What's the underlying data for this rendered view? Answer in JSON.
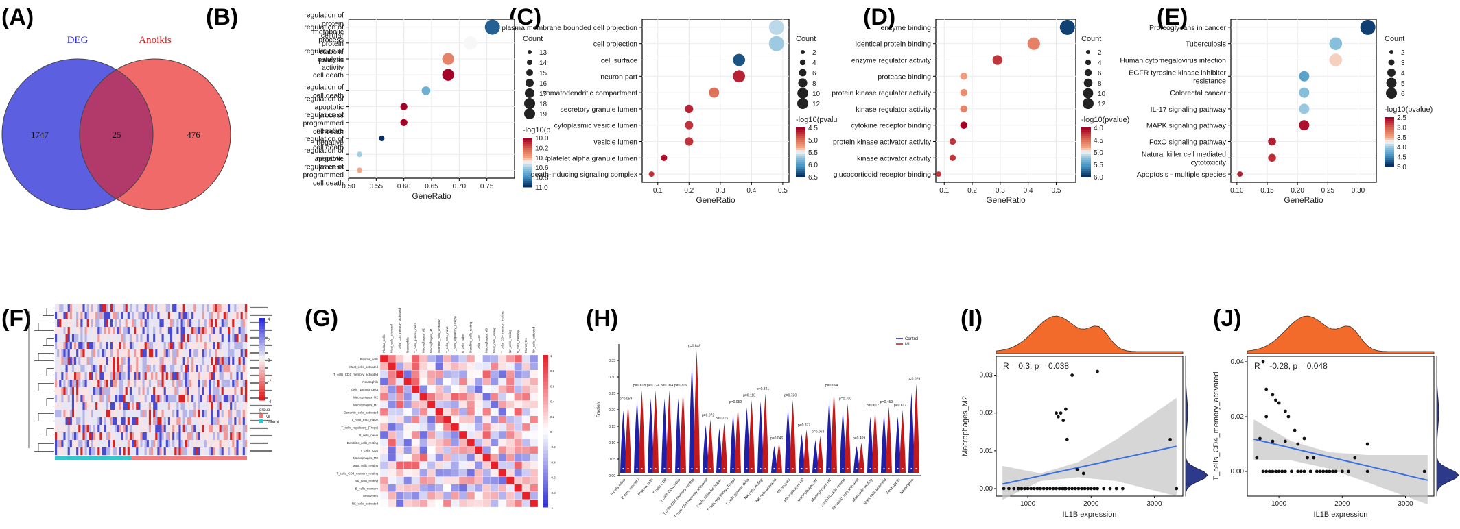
{
  "panel_letters": [
    "(A)",
    "(B)",
    "(C)",
    "(D)",
    "(E)",
    "(F)",
    "(G)",
    "(H)",
    "(I)",
    "(J)"
  ],
  "colors": {
    "deg_circle": "#5b5fe0",
    "anoikis_circle": "#f06a6a",
    "overlap": "#b23a6a",
    "scale_high": "#a50026",
    "scale_mid": "#f7f7f7",
    "scale_low": "#053061",
    "control": "#1f1fa8",
    "mi": "#c21a1a",
    "marginal_top": "#f26b2a",
    "marginal_right": "#2d3a8c",
    "fit_line": "#3a6fe0",
    "ci_band": "#c8c8c8"
  },
  "chart_data": [
    {
      "panel": "A",
      "type": "venn",
      "sets": [
        {
          "name": "DEG",
          "only": 1747
        },
        {
          "name": "Anoikis",
          "only": 476
        }
      ],
      "intersection": 25
    },
    {
      "panel": "B",
      "type": "scatter",
      "xlabel": "GeneRatio",
      "xlim": [
        0.5,
        0.8
      ],
      "xticks": [
        "0.50",
        "0.55",
        "0.60",
        "0.65",
        "0.70",
        "0.75"
      ],
      "categories": [
        "regulation of protein metabolic process",
        "regulation of cellular protein metabolic process",
        "regulation of catalytic activity",
        "cell death",
        "regulation of cell death",
        "regulation of apoptotic process",
        "regulation of programmed cell death",
        "negative regulation of cell death",
        "negative regulation of apoptotic process",
        "negative regulation of programmed cell death"
      ],
      "x": [
        0.76,
        0.72,
        0.68,
        0.68,
        0.64,
        0.6,
        0.6,
        0.56,
        0.52,
        0.52
      ],
      "count": [
        19,
        18,
        17,
        17,
        15,
        14,
        14,
        13,
        13,
        13
      ],
      "color_value": [
        10.9,
        10.5,
        10.3,
        10.0,
        10.7,
        10.0,
        10.0,
        11.0,
        10.6,
        10.4
      ],
      "size_legend_title": "Count",
      "size_legend": [
        "13",
        "14",
        "15",
        "16",
        "17",
        "18",
        "19"
      ],
      "color_legend_title": "-log10(p",
      "color_legend": [
        "10.0",
        "10.2",
        "10.4",
        "10.6",
        "10.8",
        "11.0"
      ],
      "color_range": [
        10.0,
        11.0
      ]
    },
    {
      "panel": "C",
      "type": "scatter",
      "xlabel": "GeneRatio",
      "xlim": [
        0.05,
        0.52
      ],
      "xticks": [
        "0.1",
        "0.2",
        "0.3",
        "0.4",
        "0.5"
      ],
      "categories": [
        "plasma membrane bounded cell projection",
        "cell projection",
        "cell surface",
        "neuron part",
        "somatodendritic compartment",
        "secretory granule lumen",
        "cytoplasmic vesicle lumen",
        "vesicle lumen",
        "platelet alpha granule lumen",
        "death-inducing signaling complex"
      ],
      "x": [
        0.48,
        0.48,
        0.36,
        0.36,
        0.28,
        0.2,
        0.2,
        0.2,
        0.12,
        0.08
      ],
      "count": [
        12,
        12,
        9,
        9,
        7,
        5,
        5,
        5,
        3,
        2
      ],
      "color_value": [
        5.6,
        5.7,
        6.6,
        4.2,
        4.7,
        4.2,
        4.3,
        4.3,
        4.1,
        4.3
      ],
      "size_legend_title": "Count",
      "size_legend": [
        "2",
        "4",
        "6",
        "8",
        "10",
        "12"
      ],
      "color_legend_title": "-log10(pvalu",
      "color_legend": [
        "4.5",
        "5.0",
        "5.5",
        "6.0",
        "6.5"
      ],
      "color_range": [
        4.0,
        6.8
      ]
    },
    {
      "panel": "D",
      "type": "scatter",
      "xlabel": "GeneRatio",
      "xlim": [
        0.07,
        0.57
      ],
      "xticks": [
        "0.1",
        "0.2",
        "0.3",
        "0.4",
        "0.5"
      ],
      "categories": [
        "enzyme binding",
        "identical protein binding",
        "enzyme regulator activity",
        "protease binding",
        "protein kinase regulator activity",
        "kinase regulator activity",
        "cytokine receptor binding",
        "protein kinase activator activity",
        "kinase activator activity",
        "glucocorticoid receptor binding"
      ],
      "x": [
        0.54,
        0.42,
        0.29,
        0.17,
        0.17,
        0.17,
        0.17,
        0.13,
        0.13,
        0.08
      ],
      "count": [
        13,
        10,
        7,
        4,
        4,
        4,
        4,
        3,
        3,
        2
      ],
      "color_value": [
        6.2,
        4.4,
        3.9,
        4.6,
        4.5,
        4.4,
        3.6,
        3.9,
        3.9,
        3.9
      ],
      "size_legend_title": "Count",
      "size_legend": [
        "2",
        "4",
        "6",
        "8",
        "10",
        "12"
      ],
      "color_legend_title": "-log10(pvalue)",
      "color_legend": [
        "4.0",
        "4.5",
        "5.0",
        "5.5",
        "6.0"
      ],
      "color_range": [
        3.6,
        6.3
      ]
    },
    {
      "panel": "E",
      "type": "scatter",
      "xlabel": "GeneRatio",
      "xlim": [
        0.09,
        0.33
      ],
      "xticks": [
        "0.10",
        "0.15",
        "0.20",
        "0.25",
        "0.30"
      ],
      "categories": [
        "Proteoglycans in cancer",
        "Tuberculosis",
        "Human cytomegalovirus infection",
        "EGFR tyrosine kinase inhibitor resistance",
        "Colorectal cancer",
        "IL-17 signaling pathway",
        "MAPK signaling pathway",
        "FoxO signaling pathway",
        "Natural killer cell mediated cytotoxicity",
        "Apoptosis - multiple species"
      ],
      "x": [
        0.316,
        0.263,
        0.263,
        0.211,
        0.211,
        0.211,
        0.211,
        0.158,
        0.158,
        0.105
      ],
      "count": [
        6,
        5,
        5,
        4,
        4,
        4,
        4,
        3,
        3,
        2
      ],
      "color_value": [
        5.2,
        4.2,
        3.6,
        4.5,
        4.2,
        4.1,
        2.3,
        2.4,
        2.5,
        2.4
      ],
      "size_legend_title": "Count",
      "size_legend": [
        "2",
        "3",
        "4",
        "5",
        "6"
      ],
      "color_legend_title": "-log10(pvalue)",
      "color_legend": [
        "2.5",
        "3.0",
        "3.5",
        "4.0",
        "4.5",
        "5.0"
      ],
      "color_range": [
        2.2,
        5.3
      ]
    },
    {
      "panel": "F",
      "type": "heatmap",
      "row_labels": [
        "",
        "",
        "",
        "",
        "",
        "",
        "",
        "",
        "",
        "",
        "",
        "",
        "",
        "",
        "",
        "",
        "",
        "",
        "",
        ""
      ],
      "colorbar_ticks": [
        "4",
        "2",
        "0",
        "-2",
        "-4"
      ],
      "legend_title": "group",
      "legend": [
        "MI",
        "Control"
      ]
    },
    {
      "panel": "G",
      "type": "heatmap",
      "cell_types": [
        "Plasma_cells",
        "Mast_cells_activated",
        "T_cells_CD4_memory_activated",
        "Neutrophils",
        "T_cells_gamma_delta",
        "Macrophages_M2",
        "Macrophages_M1",
        "Dendritic_cells_activated",
        "T_cells_CD4_naive",
        "T_cells_regulatory_(Tregs)",
        "B_cells_naive",
        "Dendritic_cells_resting",
        "T_cells_CD8",
        "Macrophages_M0",
        "Mast_cells_resting",
        "T_cells_CD4_memory_resting",
        "NK_cells_resting",
        "B_cells_memory",
        "Monocytes",
        "NK_cells_activated"
      ],
      "colorbar_ticks": [
        "1",
        "0.8",
        "0.6",
        "0.4",
        "0.2",
        "0",
        "-0.2",
        "-0.4",
        "-0.6",
        "-0.8",
        "-1"
      ]
    },
    {
      "panel": "H",
      "type": "violin",
      "ylabel": "Fraction",
      "legend": [
        "Control",
        "MI"
      ],
      "yticks": [
        "0.00",
        "0.05",
        "0.10",
        "0.15",
        "0.20",
        "0.25",
        "0.30",
        "0.35"
      ],
      "categories": [
        "B cells naive",
        "B cells memory",
        "Plasma cells",
        "T cells CD8",
        "T cells CD4 naive",
        "T cells CD4 memory resting",
        "T cells CD4 memory activated",
        "T cells follicular helper",
        "T cells regulatory (Tregs)",
        "T cells gamma delta",
        "NK cells resting",
        "NK cells activated",
        "Monocytes",
        "Macrophages M0",
        "Macrophages M1",
        "Macrophages M2",
        "Dendritic cells resting",
        "Dendritic cells activated",
        "Mast cells resting",
        "Mast cells activated",
        "Eosinophils",
        "Neutrophils"
      ],
      "pvalues": [
        "p=0.059",
        "p=0.618",
        "p=0.724",
        "p=0.004",
        "p=0.316",
        "p=0.848",
        "p=0.072",
        "p=0.215",
        "p=0.059",
        "p=0.110",
        "p=0.341",
        "p=0.046",
        "p=0.720",
        "p=0.377",
        "p=0.063",
        "p=0.064",
        "p=0.700",
        "p=0.459",
        "p=0.617",
        "p=0.459",
        "p=0.617",
        "p=0.029"
      ],
      "max_fraction": [
        0.22,
        0.26,
        0.26,
        0.26,
        0.26,
        0.38,
        0.17,
        0.16,
        0.21,
        0.23,
        0.25,
        0.1,
        0.23,
        0.14,
        0.12,
        0.26,
        0.22,
        0.1,
        0.2,
        0.21,
        0.2,
        0.28
      ]
    },
    {
      "panel": "I",
      "type": "scatter",
      "xlabel": "IL1B expression",
      "ylabel": "Macrophages_M2",
      "annotation": "R = 0.3, p = 0.038",
      "xticks": [
        "1000",
        "2000",
        "3000"
      ],
      "yticks": [
        "0.00",
        "0.01",
        "0.02",
        "0.03"
      ],
      "xlim": [
        500,
        3450
      ],
      "ylim": [
        -0.002,
        0.035
      ],
      "x": [
        620,
        700,
        780,
        850,
        900,
        950,
        1000,
        1050,
        1100,
        1150,
        1200,
        1250,
        1300,
        1350,
        1400,
        1450,
        1500,
        1550,
        1580,
        1600,
        1650,
        1700,
        1750,
        1800,
        1850,
        1900,
        1950,
        2000,
        2050,
        2100,
        2200,
        2300,
        2400,
        2500,
        3250,
        1450,
        1480,
        1520,
        1560,
        1600,
        1620,
        1700,
        2100,
        1780,
        1880,
        3350
      ],
      "y": [
        0,
        0,
        0,
        0,
        0,
        0,
        0,
        0,
        0,
        0,
        0,
        0,
        0,
        0,
        0,
        0,
        0,
        0,
        0,
        0,
        0,
        0,
        0,
        0,
        0,
        0,
        0,
        0,
        0,
        0,
        0,
        0,
        0,
        0,
        0.013,
        0.02,
        0.019,
        0.02,
        0.018,
        0.021,
        0.013,
        0.03,
        0.031,
        0.005,
        0.004,
        0
      ],
      "fit": {
        "x": [
          600,
          3350
        ],
        "y": [
          0.0012,
          0.0112
        ]
      },
      "ci_lower": [
        -0.003,
        0.002,
        0.003,
        0.002,
        -0.002
      ],
      "ci_upper": [
        0.006,
        0.004,
        0.007,
        0.013,
        0.024
      ],
      "ci_x": [
        600,
        1200,
        1800,
        2400,
        3350
      ]
    },
    {
      "panel": "J",
      "type": "scatter",
      "xlabel": "IL1B expression",
      "ylabel": "T_cells_CD4_memory_activated",
      "annotation": "R = -0.28, p = 0.048",
      "xticks": [
        "1000",
        "2000",
        "3000"
      ],
      "yticks": [
        "0.00",
        "0.02",
        "0.04"
      ],
      "xlim": [
        500,
        3450
      ],
      "ylim": [
        -0.009,
        0.042
      ],
      "x": [
        650,
        700,
        750,
        800,
        850,
        900,
        950,
        1000,
        1050,
        1100,
        1150,
        1200,
        1250,
        1300,
        1350,
        1400,
        1450,
        1500,
        1550,
        1600,
        1650,
        1700,
        1750,
        1800,
        1850,
        1900,
        2000,
        2100,
        2200,
        2400,
        3300,
        750,
        800,
        900,
        950,
        1000,
        1050,
        1100,
        1200,
        1300,
        1400,
        1500,
        1600,
        1700,
        1800,
        2000,
        2400,
        800,
        900,
        1100
      ],
      "y": [
        0.005,
        0.012,
        0.04,
        0.03,
        0.0,
        0.028,
        0.026,
        0.025,
        0.0,
        0.022,
        0.02,
        0.0,
        0.015,
        0.01,
        0.0,
        0.012,
        0.005,
        0.0,
        0.005,
        0.0,
        0.0,
        0.0,
        0.0,
        0.0,
        0.0,
        0.0,
        0.0,
        0.0,
        0.005,
        0.01,
        0.0,
        0.0,
        0.0,
        0.0,
        0.0,
        0.0,
        0.0,
        0.0,
        0.0,
        0.0,
        0.0,
        0.0,
        0.0,
        0.0,
        0.0,
        0.0,
        0.0,
        0.02,
        0.011,
        0.011
      ],
      "fit": {
        "x": [
          600,
          3350
        ],
        "y": [
          0.0118,
          -0.0032
        ]
      },
      "ci_lower": [
        0.004,
        0.004,
        0.001,
        -0.004,
        -0.012
      ],
      "ci_upper": [
        0.019,
        0.011,
        0.007,
        0.006,
        0.006
      ],
      "ci_x": [
        600,
        1200,
        1800,
        2400,
        3350
      ]
    }
  ]
}
